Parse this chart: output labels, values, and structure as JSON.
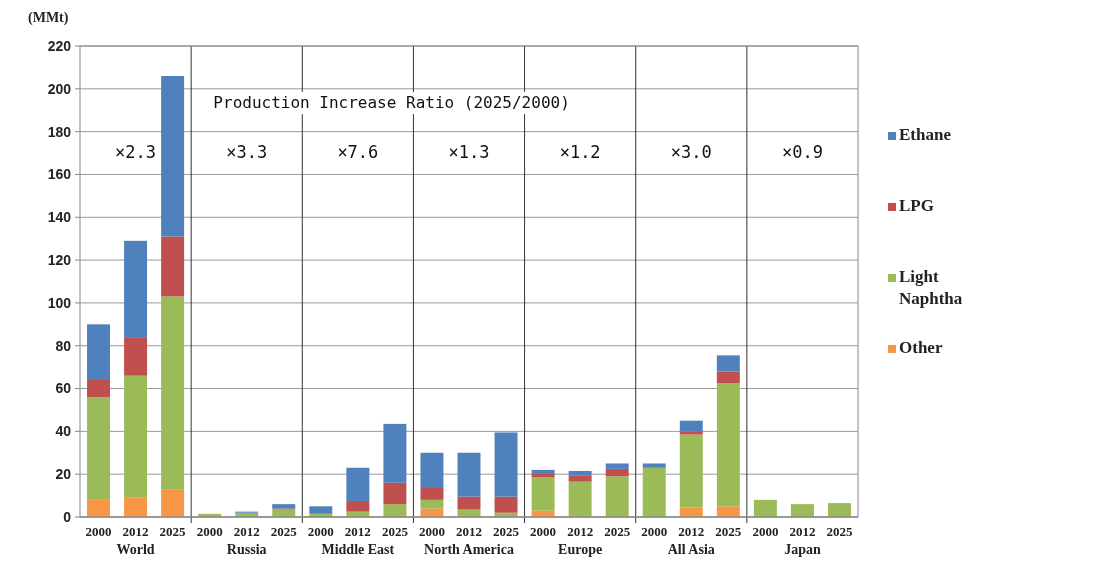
{
  "chart_data": {
    "type": "bar",
    "stacked": true,
    "ylabel": "(MMt)",
    "categories": [
      "2000",
      "2012",
      "2025",
      "2000",
      "2012",
      "2025",
      "2000",
      "2012",
      "2025",
      "2000",
      "2012",
      "2025",
      "2000",
      "2012",
      "2025",
      "2000",
      "2012",
      "2025",
      "2000",
      "2012",
      "2025"
    ],
    "series": [
      {
        "name": "Other",
        "color": "#f79646",
        "values": [
          8,
          9,
          13,
          0,
          0,
          0,
          0,
          0,
          0,
          4,
          0,
          0,
          3,
          0,
          0,
          0,
          4.5,
          5,
          0,
          0,
          0
        ]
      },
      {
        "name": "Light Naphtha",
        "color": "#9bbb59",
        "values": [
          48,
          57,
          90,
          1.5,
          2,
          3.5,
          1.5,
          2.5,
          6,
          4,
          3.5,
          2,
          15.5,
          16.5,
          19,
          23,
          34,
          57.5,
          8,
          6,
          6.5
        ]
      },
      {
        "name": "LPG",
        "color": "#c0504d",
        "values": [
          8,
          18,
          28,
          0,
          0,
          0.5,
          0,
          5,
          10,
          6,
          6,
          7.5,
          2,
          3,
          3.5,
          0,
          1.5,
          5.5,
          0,
          0,
          0
        ]
      },
      {
        "name": "Ethane",
        "color": "#4f81bd",
        "values": [
          26,
          45,
          75,
          0,
          0.5,
          2,
          3.5,
          15.5,
          27.5,
          16,
          20.5,
          30,
          1.5,
          2,
          2.5,
          2,
          5,
          7.5,
          0,
          0,
          0
        ]
      }
    ],
    "ylim": [
      0,
      220
    ],
    "yticks": [
      0,
      20,
      40,
      60,
      80,
      100,
      120,
      140,
      160,
      180,
      200,
      220
    ],
    "grid": "y",
    "legend": "right",
    "annotations": [
      "Production Increase Ratio (2025/2000)",
      "×2.3",
      "×3.3",
      "×7.6",
      "×1.3",
      "×1.2",
      "×3.0",
      "×0.9",
      "World",
      "Russia",
      "Middle East",
      "North America",
      "Europe",
      "All Asia",
      "Japan"
    ]
  }
}
